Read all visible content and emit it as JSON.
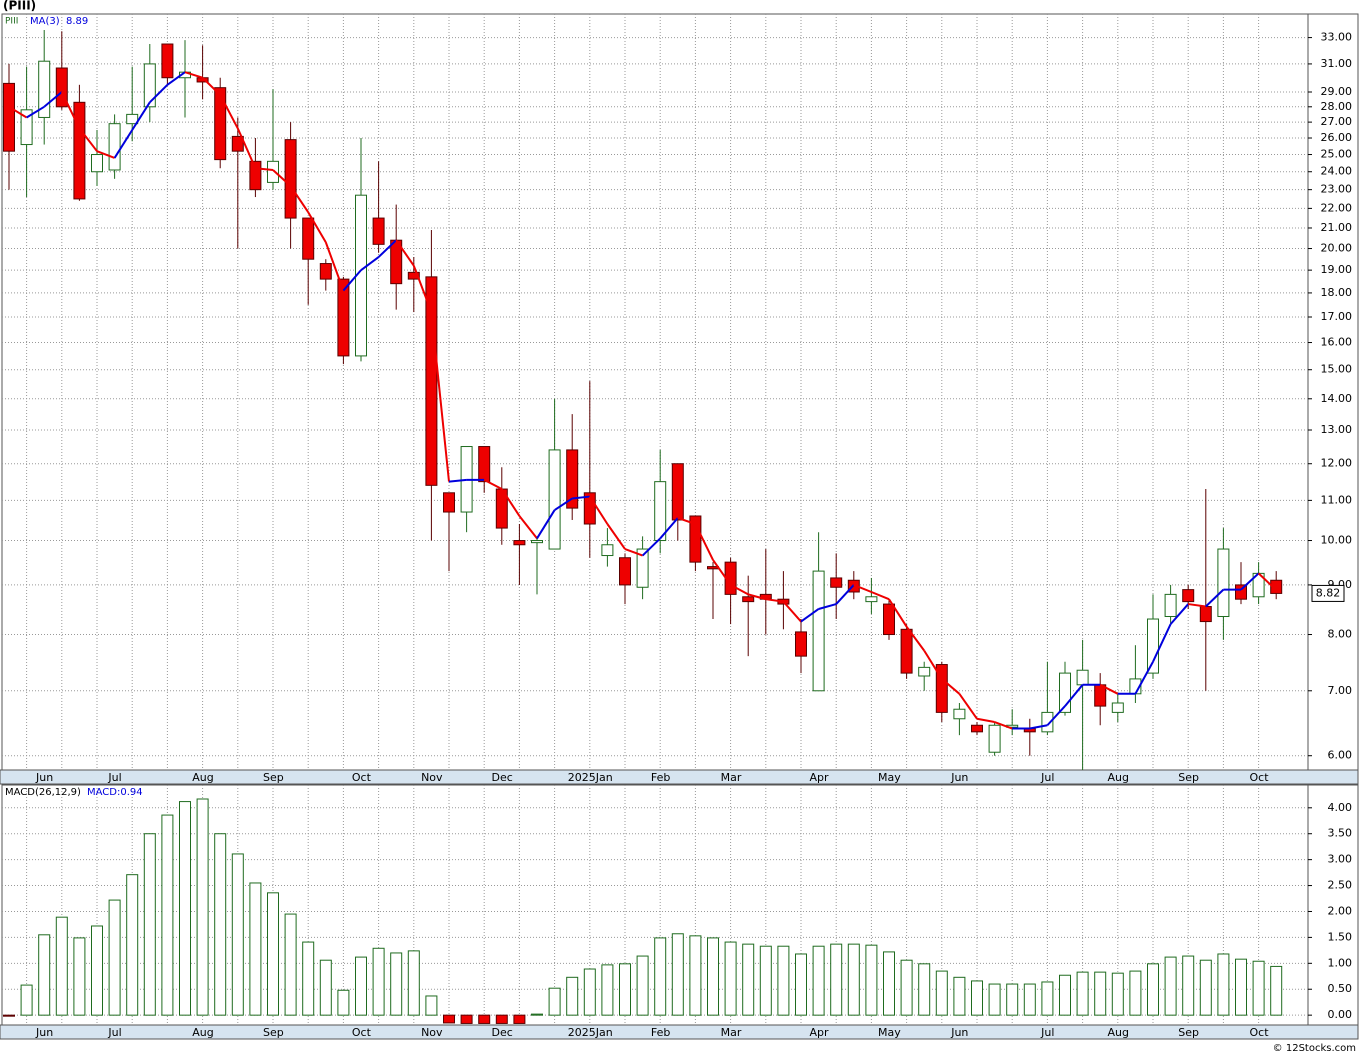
{
  "chart_data": [
    {
      "type": "candlestick",
      "title": "(PIII)",
      "symbol": "PIII",
      "categories": [
        null,
        "Jun",
        null,
        null,
        null,
        "Jul",
        null,
        null,
        null,
        null,
        "Aug",
        null,
        null,
        null,
        "Sep",
        null,
        null,
        null,
        null,
        "Oct",
        null,
        null,
        null,
        "Nov",
        null,
        null,
        null,
        "Dec",
        null,
        null,
        null,
        null,
        "2025Jan",
        null,
        null,
        null,
        "Feb",
        null,
        null,
        null,
        "Mar",
        null,
        null,
        null,
        null,
        "Apr",
        null,
        null,
        null,
        "May",
        null,
        null,
        null,
        "Jun",
        null,
        null,
        null,
        null,
        "Jul",
        null,
        null,
        null,
        "Aug",
        null,
        null,
        null,
        "Sep",
        null,
        null,
        null,
        "Oct",
        null,
        null
      ],
      "open": [
        29.6,
        25.6,
        27.3,
        30.7,
        28.3,
        24.0,
        24.1,
        26.9,
        28.0,
        32.5,
        30.0,
        30.0,
        29.3,
        26.1,
        24.6,
        23.4,
        25.9,
        21.5,
        19.3,
        18.6,
        15.5,
        21.5,
        20.4,
        18.9,
        18.7,
        11.2,
        10.7,
        12.5,
        11.3,
        10.0,
        9.95,
        9.8,
        12.4,
        11.2,
        9.65,
        9.6,
        8.95,
        10.0,
        12.0,
        10.6,
        9.4,
        9.5,
        8.75,
        8.8,
        8.7,
        8.05,
        7.0,
        9.15,
        9.1,
        8.65,
        8.6,
        8.1,
        7.25,
        7.45,
        6.55,
        6.45,
        6.05,
        6.42,
        6.4,
        6.35,
        6.65,
        7.1,
        7.1,
        6.65,
        6.95,
        7.3,
        8.35,
        8.9,
        8.55,
        8.35,
        9.0,
        8.75,
        9.1
      ],
      "high": [
        31,
        30.8,
        33.6,
        33.5,
        29.5,
        26.5,
        27.5,
        30.8,
        32.5,
        32.5,
        32.8,
        32.4,
        30,
        27.3,
        26,
        29.2,
        27,
        21.5,
        19.5,
        18.7,
        26,
        24.6,
        22.2,
        19.6,
        20.9,
        11.2,
        12.5,
        12.5,
        11.9,
        10.4,
        10.1,
        14.0,
        13.5,
        14.6,
        10.3,
        9.7,
        10.1,
        12.4,
        12.0,
        10.6,
        9.5,
        9.6,
        9.2,
        9.8,
        9.3,
        8.3,
        10.2,
        9.7,
        9.3,
        9.15,
        8.7,
        8.2,
        7.5,
        7.5,
        6.8,
        6.5,
        6.5,
        6.7,
        6.55,
        7.5,
        7.5,
        7.9,
        7.3,
        6.95,
        7.8,
        8.8,
        9.0,
        9.0,
        11.3,
        10.3,
        9.5,
        9.5,
        9.3
      ],
      "low": [
        23,
        22.6,
        25.6,
        27.8,
        22.4,
        23.2,
        23.6,
        25.8,
        27,
        29.5,
        27.3,
        28.5,
        24.2,
        20,
        22.6,
        23,
        20,
        17.5,
        18.1,
        15.2,
        15.3,
        19.8,
        17.3,
        17.2,
        10.0,
        9.3,
        10.2,
        11.2,
        9.9,
        9.0,
        8.8,
        9.8,
        10.5,
        9.6,
        9.4,
        8.6,
        8.7,
        9.7,
        10.0,
        9.3,
        8.3,
        8.2,
        7.6,
        8.0,
        8.1,
        7.3,
        7.0,
        8.3,
        8.7,
        8.4,
        7.9,
        7.2,
        7.0,
        6.5,
        6.3,
        6.3,
        6.0,
        6.3,
        6.0,
        6.3,
        6.6,
        5.8,
        6.45,
        6.5,
        6.8,
        7.2,
        8.2,
        8.5,
        7.0,
        7.9,
        8.6,
        8.6,
        8.7
      ],
      "close": [
        25.2,
        27.8,
        31.2,
        28.0,
        22.5,
        25.0,
        26.9,
        27.5,
        31.0,
        30.0,
        30.4,
        29.7,
        24.7,
        25.2,
        23.0,
        24.6,
        21.5,
        19.5,
        18.6,
        15.5,
        22.7,
        20.2,
        18.4,
        18.6,
        11.4,
        10.7,
        12.5,
        11.5,
        10.3,
        9.9,
        10.0,
        12.4,
        10.8,
        10.4,
        9.9,
        9.0,
        9.8,
        11.5,
        10.5,
        9.5,
        9.35,
        8.8,
        8.65,
        8.7,
        8.6,
        7.6,
        9.3,
        8.95,
        8.85,
        8.75,
        8.0,
        7.3,
        7.4,
        6.65,
        6.7,
        6.35,
        6.45,
        6.45,
        6.35,
        6.65,
        7.3,
        7.35,
        6.75,
        6.8,
        7.2,
        8.3,
        8.8,
        8.65,
        8.25,
        9.8,
        8.7,
        9.25,
        8.82
      ],
      "up_color": "#ffffff",
      "up_edge": "#1f6b1f",
      "down_color": "#ee0000",
      "down_edge": "#5a0000",
      "ma": {
        "name": "MA(3)",
        "up_color": "#0000dd",
        "down_color": "#ee0000",
        "values": [
          28.0,
          27.3,
          28.0,
          29.0,
          26.6,
          25.2,
          24.8,
          26.5,
          28.3,
          29.5,
          30.4,
          30.0,
          28.8,
          26.6,
          24.2,
          24.1,
          23.2,
          21.8,
          20.3,
          18.1,
          19.0,
          19.6,
          20.4,
          19.2,
          17.2,
          11.5,
          11.55,
          11.55,
          11.3,
          10.6,
          10.05,
          10.75,
          11.05,
          11.1,
          10.4,
          9.8,
          9.65,
          10.05,
          10.55,
          10.4,
          9.55,
          9.0,
          8.8,
          8.7,
          8.65,
          8.25,
          8.5,
          8.6,
          9.0,
          8.85,
          8.7,
          8.15,
          7.7,
          7.2,
          6.95,
          6.55,
          6.5,
          6.4,
          6.4,
          6.45,
          6.75,
          7.1,
          7.1,
          6.95,
          6.95,
          7.5,
          8.2,
          8.6,
          8.55,
          8.9,
          8.9,
          9.25,
          8.89
        ]
      },
      "log_scale": true,
      "grid": true,
      "ylim": [
        5.8,
        34.9
      ],
      "yticks": [
        {
          "value": 6,
          "label": "6.00"
        },
        {
          "value": 7,
          "label": "7.00"
        },
        {
          "value": 8,
          "label": "8.00"
        },
        {
          "value": 9,
          "label": "9.00"
        },
        {
          "value": 10,
          "label": "10.00"
        },
        {
          "value": 11,
          "label": "11.00"
        },
        {
          "value": 12,
          "label": "12.00"
        },
        {
          "value": 13,
          "label": "13.00"
        },
        {
          "value": 14,
          "label": "14.00"
        },
        {
          "value": 15,
          "label": "15.00"
        },
        {
          "value": 16,
          "label": "16.00"
        },
        {
          "value": 17,
          "label": "17.00"
        },
        {
          "value": 18,
          "label": "18.00"
        },
        {
          "value": 19,
          "label": "19.00"
        },
        {
          "value": 20,
          "label": "20.00"
        },
        {
          "value": 21,
          "label": "21.00"
        },
        {
          "value": 22,
          "label": "22.00"
        },
        {
          "value": 23,
          "label": "23.00"
        },
        {
          "value": 24,
          "label": "24.00"
        },
        {
          "value": 25,
          "label": "25.00"
        },
        {
          "value": 26,
          "label": "26.00"
        },
        {
          "value": 27,
          "label": "27.00"
        },
        {
          "value": 28,
          "label": "28.00"
        },
        {
          "value": 29,
          "label": "29.00"
        },
        {
          "value": 31,
          "label": "31.00"
        },
        {
          "value": 33,
          "label": "33.00"
        }
      ]
    },
    {
      "type": "bar",
      "title": "MACD(26,12,9)",
      "legend": "MACD:0.94",
      "categories": [
        null,
        "Jun",
        null,
        null,
        null,
        "Jul",
        null,
        null,
        null,
        null,
        "Aug",
        null,
        null,
        null,
        "Sep",
        null,
        null,
        null,
        null,
        "Oct",
        null,
        null,
        null,
        "Nov",
        null,
        null,
        null,
        "Dec",
        null,
        null,
        null,
        null,
        "2025Jan",
        null,
        null,
        null,
        "Feb",
        null,
        null,
        null,
        "Mar",
        null,
        null,
        null,
        null,
        "Apr",
        null,
        null,
        null,
        "May",
        null,
        null,
        null,
        "Jun",
        null,
        null,
        null,
        null,
        "Jul",
        null,
        null,
        null,
        "Aug",
        null,
        null,
        null,
        "Sep",
        null,
        null,
        null,
        "Oct",
        null,
        null
      ],
      "values": [
        -0.02,
        0.58,
        1.55,
        1.89,
        1.49,
        1.72,
        2.22,
        2.71,
        3.5,
        3.86,
        4.12,
        4.17,
        3.5,
        3.11,
        2.55,
        2.36,
        1.95,
        1.41,
        1.06,
        0.48,
        1.12,
        1.29,
        1.2,
        1.24,
        0.37,
        -0.15,
        -0.16,
        -0.16,
        -0.16,
        -0.16,
        0.02,
        0.52,
        0.73,
        0.89,
        0.97,
        0.99,
        1.14,
        1.49,
        1.57,
        1.53,
        1.49,
        1.41,
        1.37,
        1.33,
        1.33,
        1.18,
        1.33,
        1.37,
        1.37,
        1.35,
        1.22,
        1.06,
        0.99,
        0.85,
        0.73,
        0.66,
        0.6,
        0.6,
        0.6,
        0.64,
        0.77,
        0.83,
        0.83,
        0.81,
        0.85,
        0.99,
        1.12,
        1.14,
        1.06,
        1.18,
        1.08,
        1.04,
        0.94
      ],
      "up_color": "#ffffff",
      "up_edge": "#1f6b1f",
      "down_color": "#ee0000",
      "down_edge": "#5a0000",
      "grid": true,
      "ylim": [
        -0.19,
        4.44
      ],
      "yticks": [
        {
          "value": 0,
          "label": "0.00"
        },
        {
          "value": 0.5,
          "label": "0.50"
        },
        {
          "value": 1,
          "label": "1.00"
        },
        {
          "value": 1.5,
          "label": "1.50"
        },
        {
          "value": 2,
          "label": "2.00"
        },
        {
          "value": 2.5,
          "label": "2.50"
        },
        {
          "value": 3,
          "label": "3.00"
        },
        {
          "value": 3.5,
          "label": "3.50"
        },
        {
          "value": 4,
          "label": "4.00"
        }
      ]
    }
  ],
  "footer": "© 12Stocks.com"
}
